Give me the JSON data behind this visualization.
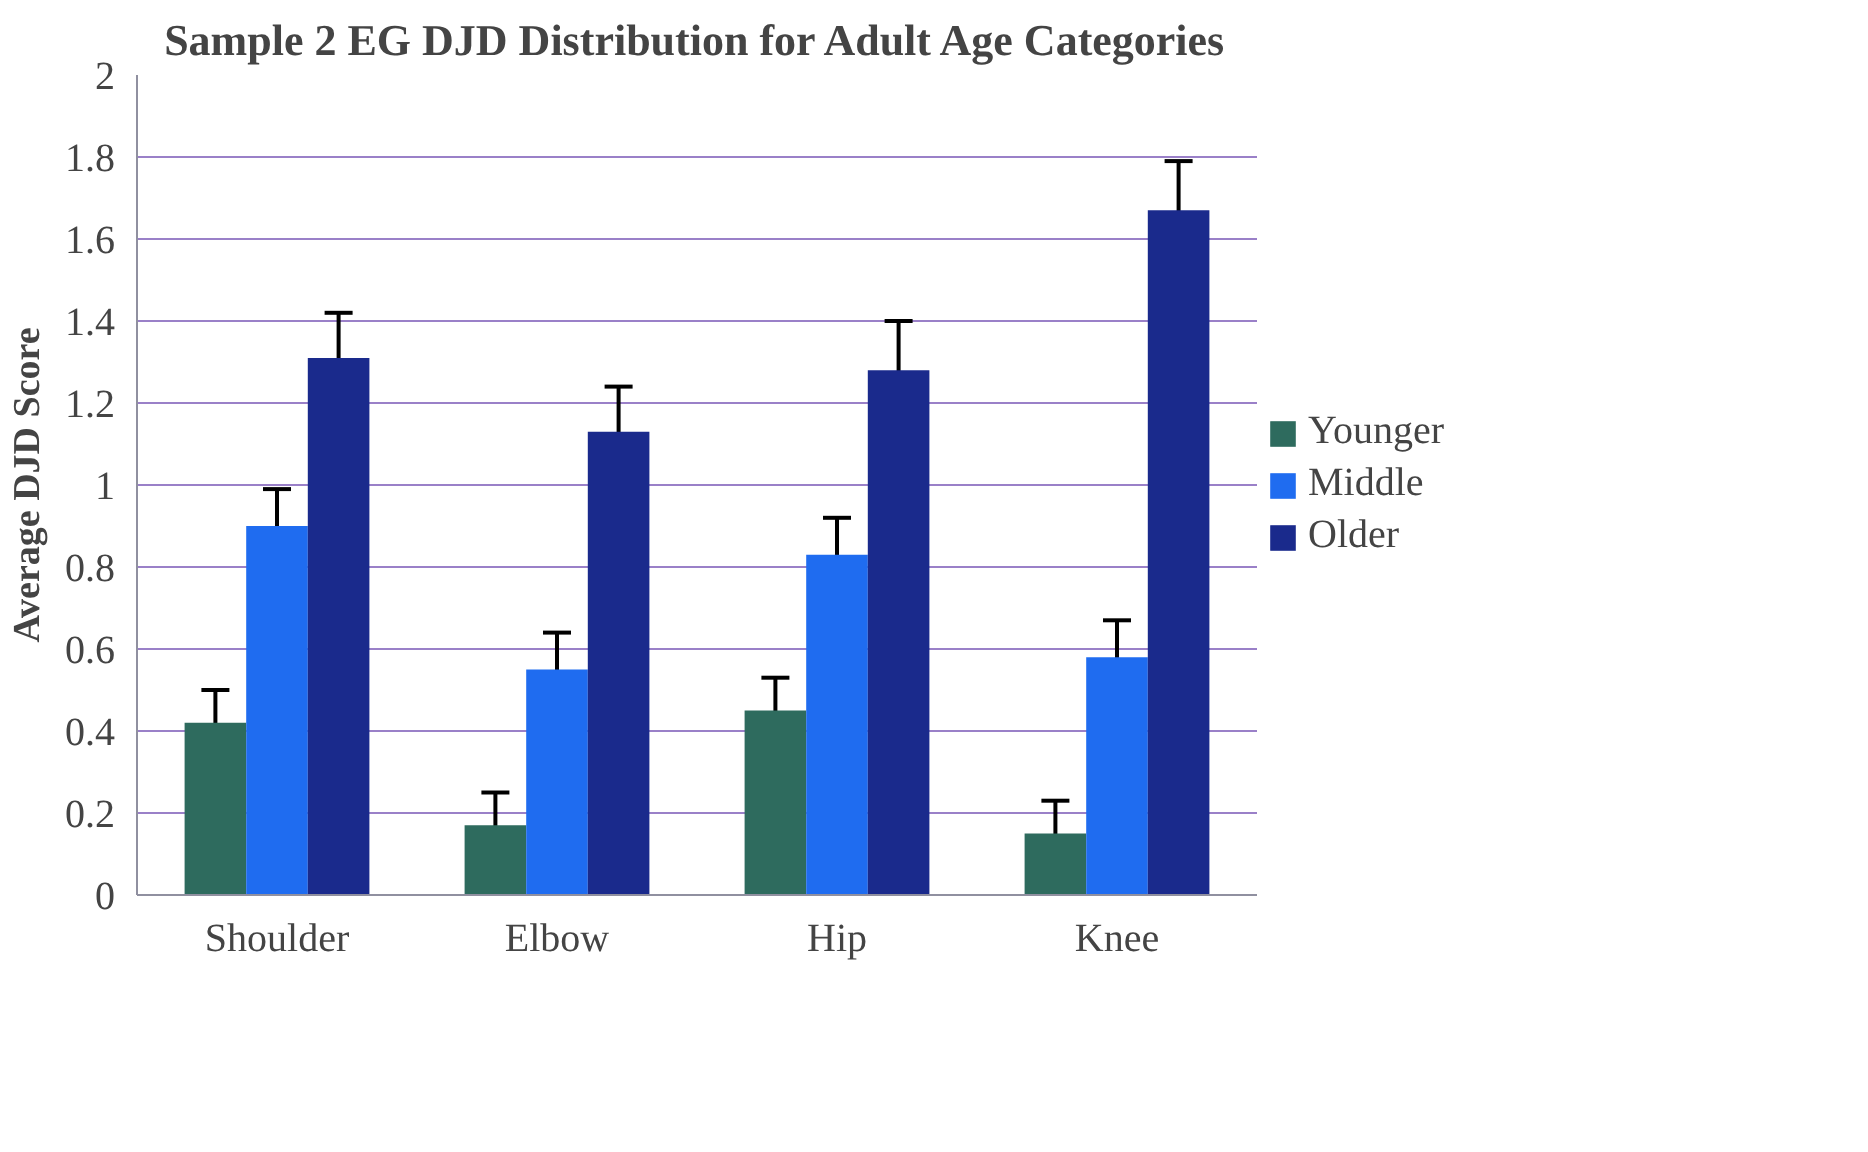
{
  "chart_data": {
    "type": "bar",
    "title": "Sample 2 EG DJD Distribution for Adult Age Categories",
    "ylabel": "Average DJD Score",
    "categories": [
      "Shoulder",
      "Elbow",
      "Hip",
      "Knee"
    ],
    "series": [
      {
        "name": "Younger",
        "color": "#2e6b5e",
        "values": [
          0.42,
          0.17,
          0.45,
          0.15
        ],
        "errors": [
          0.08,
          0.08,
          0.08,
          0.08
        ]
      },
      {
        "name": "Middle",
        "color": "#1f6cf0",
        "values": [
          0.9,
          0.55,
          0.83,
          0.58
        ],
        "errors": [
          0.09,
          0.09,
          0.09,
          0.09
        ]
      },
      {
        "name": "Older",
        "color": "#1a2a8c",
        "values": [
          1.31,
          1.13,
          1.28,
          1.67
        ],
        "errors": [
          0.11,
          0.11,
          0.12,
          0.12
        ]
      }
    ],
    "ylim": [
      0,
      2
    ],
    "yticks": [
      0,
      {
        "value": 0.2,
        "label": "0.2"
      },
      {
        "value": 0.4,
        "label": "0.4"
      },
      {
        "value": 0.6,
        "label": "0.6"
      },
      {
        "value": 0.8,
        "label": "0.8"
      },
      1,
      {
        "value": 1.2,
        "label": "1.2"
      },
      {
        "value": 1.4,
        "label": "1.4"
      },
      {
        "value": 1.6,
        "label": "1.6"
      },
      {
        "value": 1.8,
        "label": "1.8"
      },
      2
    ],
    "grid": "y",
    "legend": "right"
  }
}
